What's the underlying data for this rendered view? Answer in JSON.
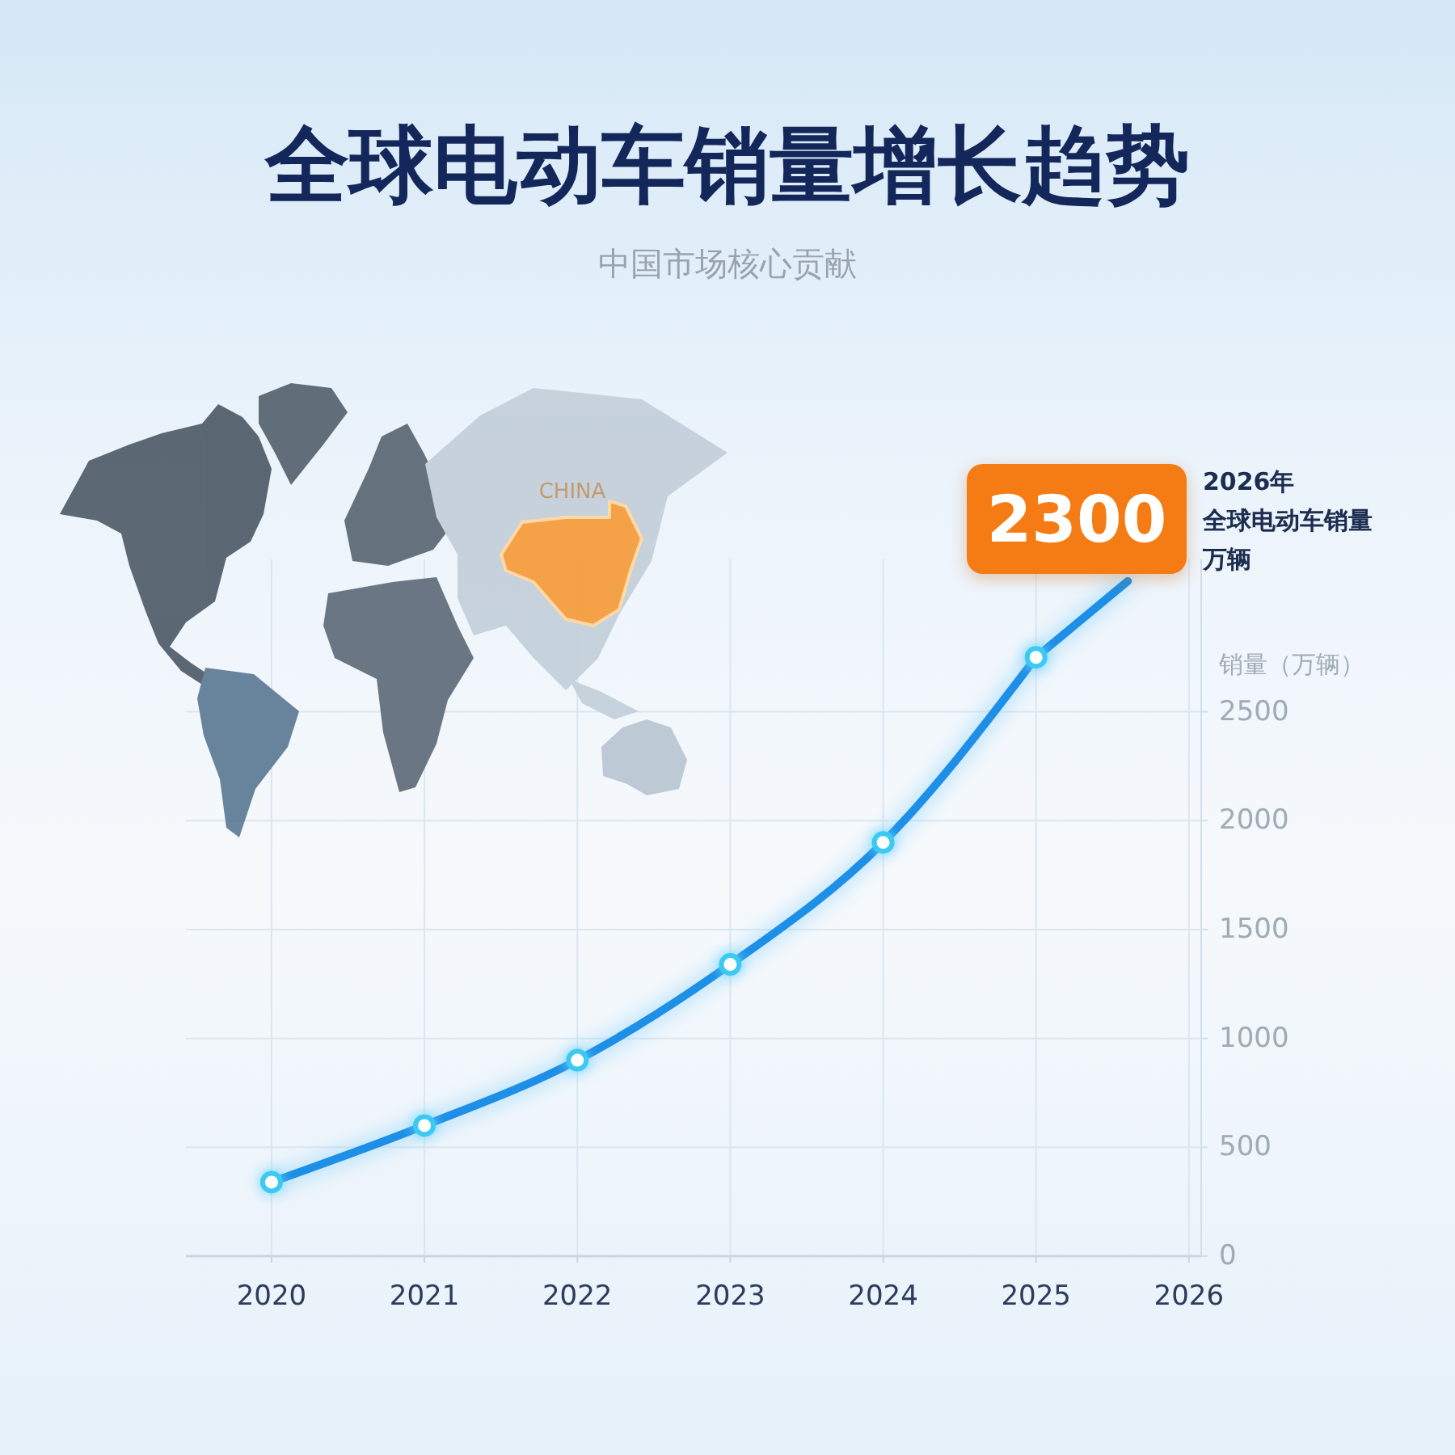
{
  "chart_data": {
    "type": "line",
    "title": "全球电动车销量增长趋势",
    "subtitle": "中国市场核心贡献",
    "ylabel": "销量（万辆）",
    "x": [
      2020,
      2021,
      2022,
      2023,
      2024,
      2025
    ],
    "series": [
      {
        "color": "#1e8fe6",
        "values": [
          340,
          600,
          900,
          1340,
          1900,
          2750
        ]
      },
      {
        "color": "#1e8fe6",
        "x": [
          2025,
          2025.6
        ],
        "values": [
          2750,
          3100
        ],
        "marker": "none"
      }
    ],
    "xlim": [
      2019.44,
      2026.08
    ],
    "xticks": [
      2020,
      2021,
      2022,
      2023,
      2024,
      2025,
      2026
    ],
    "ylim": [
      0,
      3200
    ],
    "yticks": [
      0,
      500,
      1000,
      1500,
      2000,
      2500
    ],
    "grid": true,
    "marker": "circle",
    "annotations": [
      "2300",
      "2026年",
      "全球电动车销量",
      "万辆",
      "CHINA"
    ]
  }
}
